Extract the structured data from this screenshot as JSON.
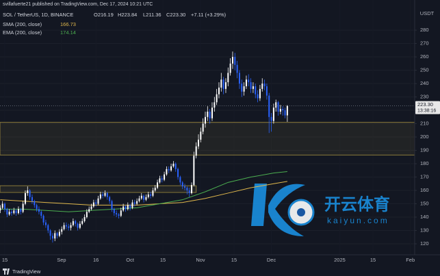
{
  "chart_data": {
    "type": "candlestick",
    "published": "svillafuerte21 published on TradingView.com, Dec 17, 2024 10:21 UTC",
    "title": "SOL / TetherUS, 1D, BINANCE",
    "ohlc_labels": [
      "O216.19",
      "H223.84",
      "L211.36",
      "C223.30"
    ],
    "change_label": "+7.11 (+3.29%)",
    "y_axis_label": "USDT",
    "last_price_label": "223.30",
    "countdown": "13:38:16",
    "brand": "TradingView",
    "watermark": [
      "开云体育",
      "kaiyun.com"
    ],
    "up_color": "#ffffff",
    "down_color": "#2962ff",
    "open": [
      145,
      147,
      150,
      146,
      142,
      144,
      143,
      145,
      143,
      146,
      144,
      150,
      158,
      160,
      155,
      152,
      149,
      146,
      144,
      141,
      136,
      134,
      130,
      126,
      124,
      128,
      126,
      129,
      131,
      134,
      133,
      132,
      134,
      137,
      135,
      132,
      135,
      137,
      140,
      144,
      146,
      148,
      151,
      150,
      154,
      157,
      156,
      158,
      155,
      152,
      146,
      143,
      142,
      141,
      145,
      148,
      146,
      149,
      147,
      151,
      150,
      152,
      154,
      156,
      153,
      155,
      157,
      156,
      160,
      162,
      166,
      169,
      168,
      172,
      176,
      175,
      178,
      180,
      176,
      170,
      166,
      163,
      162,
      160,
      158,
      164,
      186,
      193,
      198,
      204,
      210,
      215,
      219,
      214,
      222,
      226,
      232,
      237,
      243,
      236,
      241,
      248,
      255,
      260,
      254,
      248,
      240,
      234,
      238,
      243,
      241,
      236,
      238,
      232,
      229,
      236,
      240,
      238,
      231,
      215,
      212,
      222,
      226,
      219,
      221,
      220,
      216.19
    ],
    "high": [
      149,
      152,
      151,
      147,
      146,
      146,
      147,
      146,
      148,
      147,
      152,
      160,
      163,
      161,
      157,
      153,
      150,
      148,
      145,
      142,
      138,
      135,
      131,
      128,
      130,
      129,
      131,
      133,
      136,
      136,
      135,
      136,
      139,
      138,
      136,
      137,
      139,
      142,
      146,
      148,
      150,
      153,
      153,
      156,
      159,
      159,
      160,
      159,
      156,
      153,
      147,
      145,
      143,
      147,
      150,
      149,
      151,
      150,
      153,
      153,
      154,
      156,
      158,
      157,
      157,
      159,
      159,
      162,
      164,
      168,
      171,
      171,
      174,
      178,
      178,
      180,
      182,
      181,
      177,
      171,
      167,
      165,
      163,
      162,
      166,
      189,
      196,
      202,
      207,
      214,
      219,
      223,
      221,
      226,
      230,
      236,
      241,
      248,
      245,
      244,
      252,
      259,
      264,
      263,
      257,
      250,
      243,
      241,
      246,
      247,
      244,
      241,
      240,
      235,
      239,
      244,
      243,
      240,
      233,
      218,
      225,
      228,
      227,
      224,
      223,
      222,
      223.84
    ],
    "low": [
      143,
      146,
      144,
      140,
      141,
      141,
      142,
      141,
      142,
      142,
      143,
      149,
      156,
      153,
      150,
      147,
      144,
      142,
      139,
      134,
      132,
      128,
      123,
      121,
      122,
      124,
      125,
      127,
      130,
      131,
      130,
      130,
      133,
      133,
      130,
      131,
      134,
      136,
      139,
      143,
      145,
      147,
      148,
      149,
      153,
      154,
      155,
      153,
      150,
      144,
      141,
      140,
      139,
      140,
      144,
      144,
      145,
      145,
      146,
      148,
      149,
      151,
      153,
      151,
      152,
      154,
      154,
      155,
      159,
      161,
      165,
      166,
      167,
      171,
      173,
      174,
      177,
      174,
      168,
      164,
      161,
      160,
      157,
      155,
      157,
      163,
      184,
      191,
      196,
      202,
      207,
      212,
      210,
      212,
      219,
      224,
      229,
      234,
      232,
      233,
      238,
      246,
      251,
      250,
      244,
      236,
      230,
      231,
      236,
      238,
      233,
      233,
      229,
      226,
      227,
      234,
      235,
      228,
      203,
      204,
      210,
      219,
      216,
      217,
      216,
      214,
      211.36
    ],
    "close": [
      147,
      150,
      146,
      142,
      144,
      143,
      145,
      143,
      146,
      144,
      150,
      158,
      160,
      155,
      152,
      149,
      146,
      144,
      141,
      136,
      134,
      130,
      126,
      124,
      128,
      126,
      129,
      131,
      134,
      133,
      132,
      134,
      137,
      135,
      132,
      135,
      137,
      140,
      144,
      146,
      148,
      151,
      150,
      154,
      157,
      156,
      158,
      155,
      152,
      146,
      143,
      142,
      141,
      145,
      148,
      146,
      149,
      147,
      151,
      150,
      152,
      154,
      156,
      153,
      155,
      157,
      156,
      160,
      162,
      166,
      169,
      168,
      172,
      176,
      175,
      178,
      180,
      176,
      170,
      166,
      163,
      162,
      160,
      158,
      164,
      186,
      193,
      198,
      204,
      210,
      215,
      219,
      214,
      222,
      226,
      232,
      237,
      243,
      236,
      241,
      248,
      255,
      260,
      254,
      248,
      240,
      234,
      238,
      243,
      241,
      236,
      238,
      232,
      229,
      236,
      240,
      238,
      231,
      215,
      212,
      222,
      226,
      219,
      221,
      220,
      216.19,
      223.3
    ],
    "lines": [
      {
        "type": "line",
        "name": "SMA (200, close)",
        "color": "#e0b84c",
        "x": [
          0,
          10,
          20,
          30,
          40,
          50,
          60,
          70,
          80,
          90,
          100,
          110,
          120,
          126
        ],
        "values": [
          153,
          152,
          151,
          150,
          149,
          149,
          149,
          150,
          151,
          154,
          158,
          162,
          165,
          166.73
        ]
      },
      {
        "type": "line",
        "name": "EMA (200, close)",
        "color": "#4caf50",
        "x": [
          0,
          10,
          20,
          30,
          40,
          50,
          60,
          70,
          80,
          90,
          100,
          110,
          120,
          126
        ],
        "values": [
          146,
          146,
          145,
          144,
          145,
          146,
          147,
          150,
          153,
          159,
          166,
          170,
          173,
          174.14
        ]
      }
    ],
    "zones": [
      {
        "from": 186.5,
        "to": 211
      },
      {
        "from": 158.5,
        "to": 163.5,
        "x_end": 86
      }
    ],
    "xlim": [
      -0.1,
      181.9
    ],
    "xticks": [
      {
        "value": 2,
        "label": "15"
      },
      {
        "value": 26.9,
        "label": "Sep"
      },
      {
        "value": 42,
        "label": "16"
      },
      {
        "value": 57,
        "label": "Oct"
      },
      {
        "value": 71.4,
        "label": "15"
      },
      {
        "value": 87.9,
        "label": "Nov"
      },
      {
        "value": 102.6,
        "label": "15"
      },
      {
        "value": 119,
        "label": "Dec"
      },
      {
        "value": 149,
        "label": "2025"
      },
      {
        "value": 163.6,
        "label": "15"
      },
      {
        "value": 180,
        "label": "Feb"
      }
    ],
    "ylim": [
      111.8,
      302.6
    ],
    "yticks": [
      120,
      130,
      140,
      150,
      160,
      170,
      180,
      190,
      200,
      210,
      220,
      230,
      240,
      250,
      260,
      270,
      280
    ],
    "grid": true
  }
}
